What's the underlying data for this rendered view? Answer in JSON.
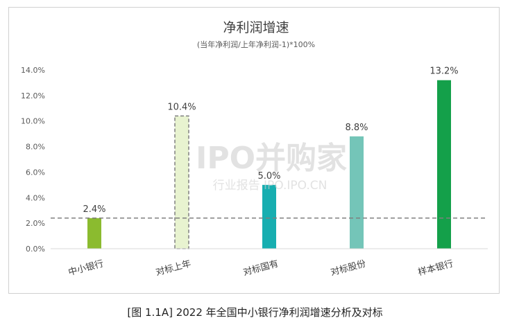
{
  "chart_data": {
    "type": "bar",
    "title": "净利润增速",
    "subtitle": "(当年净利润/上年净利润-1)*100%",
    "categories": [
      "中小银行",
      "对标上年",
      "对标国有",
      "对标股份",
      "样本银行"
    ],
    "values": [
      2.4,
      10.4,
      5.0,
      8.8,
      13.2
    ],
    "value_labels": [
      "2.4%",
      "10.4%",
      "5.0%",
      "8.8%",
      "13.2%"
    ],
    "bar_colors": [
      "#8bbb2f",
      "#e8f3d0",
      "#17aeb0",
      "#74c5b8",
      "#14a04a"
    ],
    "dashed_bar_index": 1,
    "reference_line": 2.4,
    "ylim": [
      0,
      14
    ],
    "y_ticks": [
      "0.0%",
      "2.0%",
      "4.0%",
      "6.0%",
      "8.0%",
      "10.0%",
      "12.0%",
      "14.0%"
    ],
    "grid": false,
    "xlabel": "",
    "ylabel": ""
  },
  "watermark": {
    "main": "IPO并购家",
    "sub": "行业报告 IPO.IPO.CN"
  },
  "caption": "[图 1.1A] 2022 年全国中小银行净利润增速分析及对标"
}
